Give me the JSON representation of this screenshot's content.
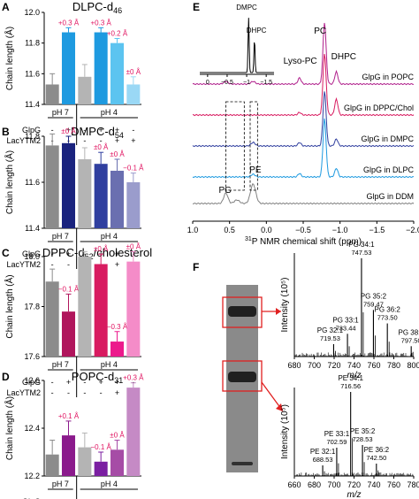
{
  "figure": {
    "panel_letters": [
      "A",
      "B",
      "C",
      "D",
      "E",
      "F"
    ]
  },
  "chart_data": [
    {
      "panel": "A",
      "type": "bar",
      "title": "DLPC-d46",
      "ylabel": "Chain length (Å)",
      "ylim": [
        11.4,
        12.0
      ],
      "yticks": [
        "11.4",
        "11.6",
        "11.8",
        "12.0"
      ],
      "groups": [
        "pH 7",
        "pH 4"
      ],
      "row_labels": [
        "GlpG",
        "LacYTM2"
      ],
      "bars": [
        {
          "glpg": "-",
          "lacy": "-",
          "value": 11.53,
          "err": 0.07,
          "color": "#8c8c8c",
          "ann": "",
          "annColor": "#e0115f"
        },
        {
          "glpg": "+",
          "lacy": "-",
          "value": 11.87,
          "err": 0.03,
          "color": "#1e9ae0",
          "ann": "+0.3 Å",
          "annColor": "#e0115f"
        },
        {
          "glpg": "-",
          "lacy": "-",
          "value": 11.58,
          "err": 0.08,
          "color": "#b4b4b4",
          "ann": "",
          "annColor": "#e0115f"
        },
        {
          "glpg": "+",
          "lacy": "-",
          "value": 11.87,
          "err": 0.03,
          "color": "#1e9ae0",
          "ann": "+0.3 Å",
          "annColor": "#e0115f"
        },
        {
          "glpg": "+",
          "lacy": "+",
          "value": 11.8,
          "err": 0.03,
          "color": "#5cc4f0",
          "ann": "+0.2 Å",
          "annColor": "#e0115f"
        },
        {
          "glpg": "-",
          "lacy": "+",
          "value": 11.53,
          "err": 0.05,
          "color": "#9ad8f5",
          "ann": "±0 Å",
          "annColor": "#e0115f"
        }
      ]
    },
    {
      "panel": "B",
      "type": "bar",
      "title": "DMPC-d54",
      "ylabel": "Chain length (Å)",
      "ylim": [
        11.4,
        11.8
      ],
      "yticks": [
        "11.4",
        "11.6",
        "11.8"
      ],
      "groups": [
        "pH 7",
        "pH 4"
      ],
      "row_labels": [
        "GlpG",
        "LacYTM2"
      ],
      "bars": [
        {
          "glpg": "-",
          "lacy": "-",
          "value": 11.76,
          "err": 0.05,
          "color": "#8c8c8c",
          "ann": "",
          "annColor": "#e0115f"
        },
        {
          "glpg": "+",
          "lacy": "-",
          "value": 11.77,
          "err": 0.03,
          "color": "#1a237e",
          "ann": "±0 Å",
          "annColor": "#e0115f"
        },
        {
          "glpg": "-",
          "lacy": "-",
          "value": 11.7,
          "err": 0.05,
          "color": "#b4b4b4",
          "ann": "",
          "annColor": "#e0115f"
        },
        {
          "glpg": "+",
          "lacy": "-",
          "value": 11.68,
          "err": 0.05,
          "color": "#303f9f",
          "ann": "±0 Å",
          "annColor": "#e0115f"
        },
        {
          "glpg": "+",
          "lacy": "+",
          "value": 11.65,
          "err": 0.05,
          "color": "#6a6fb0",
          "ann": "±0 Å",
          "annColor": "#e0115f"
        },
        {
          "glpg": "-",
          "lacy": "+",
          "value": 11.6,
          "err": 0.04,
          "color": "#9a9ccc",
          "ann": "−0.1 Å",
          "annColor": "#e0115f"
        }
      ]
    },
    {
      "panel": "C",
      "type": "bar",
      "title": "DPPC-d62/cholesterol",
      "ylabel": "Chain length (Å)",
      "ylim": [
        17.6,
        18.0
      ],
      "yticks": [
        "17.6",
        "17.8",
        "18.0"
      ],
      "groups": [
        "pH 7",
        "pH 4"
      ],
      "row_labels": [
        "GlpG",
        "LacYTM2"
      ],
      "bars": [
        {
          "glpg": "-",
          "lacy": "-",
          "value": 17.9,
          "err": 0.05,
          "color": "#8c8c8c",
          "ann": "",
          "annColor": "#e0115f"
        },
        {
          "glpg": "+",
          "lacy": "-",
          "value": 17.78,
          "err": 0.07,
          "color": "#b0155c",
          "ann": "−0.1 Å",
          "annColor": "#e0115f"
        },
        {
          "glpg": "-",
          "lacy": "-",
          "value": 18.0,
          "err": 0.06,
          "color": "#b4b4b4",
          "ann": "",
          "annColor": "#e0115f"
        },
        {
          "glpg": "+",
          "lacy": "-",
          "value": 17.97,
          "err": 0.04,
          "color": "#d81b60",
          "ann": "±0 Å",
          "annColor": "#e0115f"
        },
        {
          "glpg": "+",
          "lacy": "+",
          "value": 17.66,
          "err": 0.04,
          "color": "#ec1a8c",
          "ann": "−0.3 Å",
          "annColor": "#e0115f"
        },
        {
          "glpg": "-",
          "lacy": "+",
          "value": 17.98,
          "err": 0.04,
          "color": "#f48cc8",
          "ann": "±0 Å",
          "annColor": "#e0115f"
        }
      ]
    },
    {
      "panel": "D",
      "type": "bar",
      "title": "POPC-d31",
      "ylabel": "Chain length (Å)",
      "ylim": [
        12.2,
        12.6
      ],
      "yticks": [
        "12.2",
        "12.4",
        "12.6"
      ],
      "groups": [
        "pH 7",
        "pH 4"
      ],
      "row_labels": [
        "GlpG",
        "LacYTM2"
      ],
      "bars": [
        {
          "glpg": "-",
          "lacy": "-",
          "value": 12.29,
          "err": 0.06,
          "color": "#8c8c8c",
          "ann": "",
          "annColor": "#e0115f"
        },
        {
          "glpg": "+",
          "lacy": "-",
          "value": 12.37,
          "err": 0.06,
          "color": "#8b1a8c",
          "ann": "+0.1 Å",
          "annColor": "#e0115f"
        },
        {
          "glpg": "-",
          "lacy": "-",
          "value": 12.32,
          "err": 0.06,
          "color": "#b4b4b4",
          "ann": "",
          "annColor": "#e0115f"
        },
        {
          "glpg": "+",
          "lacy": "-",
          "value": 12.26,
          "err": 0.04,
          "color": "#7b1fa2",
          "ann": "−0.1 Å",
          "annColor": "#e0115f"
        },
        {
          "glpg": "+",
          "lacy": "+",
          "value": 12.31,
          "err": 0.04,
          "color": "#a64ca6",
          "ann": "±0 Å",
          "annColor": "#e0115f"
        },
        {
          "glpg": "-",
          "lacy": "+",
          "value": 12.57,
          "err": 0.02,
          "color": "#c58ac5",
          "ann": "+0.3 Å",
          "annColor": "#e0115f"
        }
      ]
    },
    {
      "panel": "E",
      "type": "line",
      "xlabel": "31P NMR chemical shift (ppm)",
      "xlim": [
        1.0,
        -2.0
      ],
      "xticks": [
        "1.0",
        "0.5",
        "0.0",
        "−0.5",
        "−1.0",
        "−1.5",
        "−2.0"
      ],
      "peak_labels": [
        "PC",
        "DHPC",
        "Lyso-PC",
        "PG",
        "PE"
      ],
      "series": [
        {
          "name": "GlpG in POPC",
          "color": "#b0208c"
        },
        {
          "name": "GlpG in DPPC/Chol",
          "color": "#d81b60"
        },
        {
          "name": "GlpG in DMPC",
          "color": "#303f9f"
        },
        {
          "name": "GlpG in DLPC",
          "color": "#1e9ae0"
        },
        {
          "name": "GlpG in DDM",
          "color": "#808080"
        }
      ],
      "inset": {
        "labels": [
          "DMPC",
          "DHPC"
        ],
        "xticks": [
          "0",
          "−0.5",
          "−1",
          "−1.5"
        ]
      }
    },
    {
      "panel": "F",
      "type": "line",
      "ylabel": "Intensity (10⁵)",
      "xlabel": "m/z",
      "spectra": [
        {
          "xlim": [
            680,
            800
          ],
          "xticks": [
            "680",
            "700",
            "720",
            "740",
            "760",
            "780",
            "800"
          ],
          "peaks": [
            {
              "label": "PG 34:1",
              "mz": "747.53",
              "x": 747.5,
              "h": 0.95
            },
            {
              "label": "PG 35:2",
              "mz": "759.47",
              "x": 759.5,
              "h": 0.45
            },
            {
              "label": "PG 36:2",
              "mz": "773.50",
              "x": 773.5,
              "h": 0.32
            },
            {
              "label": "PG 33:1",
              "mz": "733.44",
              "x": 733.4,
              "h": 0.22
            },
            {
              "label": "PG 32:1",
              "mz": "719.53",
              "x": 719.5,
              "h": 0.12
            },
            {
              "label": "PG 38:4",
              "mz": "797.50",
              "x": 797.5,
              "h": 0.1
            }
          ]
        },
        {
          "xlim": [
            660,
            780
          ],
          "xticks": [
            "660",
            "680",
            "700",
            "720",
            "740",
            "760",
            "780"
          ],
          "peaks": [
            {
              "label": "PE 34:1",
              "mz": "716.56",
              "x": 716.6,
              "h": 0.95
            },
            {
              "label": "PE 35:2",
              "mz": "728.53",
              "x": 728.5,
              "h": 0.35
            },
            {
              "label": "PE 33:1",
              "mz": "702.59",
              "x": 702.6,
              "h": 0.32
            },
            {
              "label": "PE 36:2",
              "mz": "742.50",
              "x": 742.5,
              "h": 0.14
            },
            {
              "label": "PE 32:1",
              "mz": "688.53",
              "x": 688.5,
              "h": 0.12
            }
          ]
        }
      ]
    }
  ]
}
